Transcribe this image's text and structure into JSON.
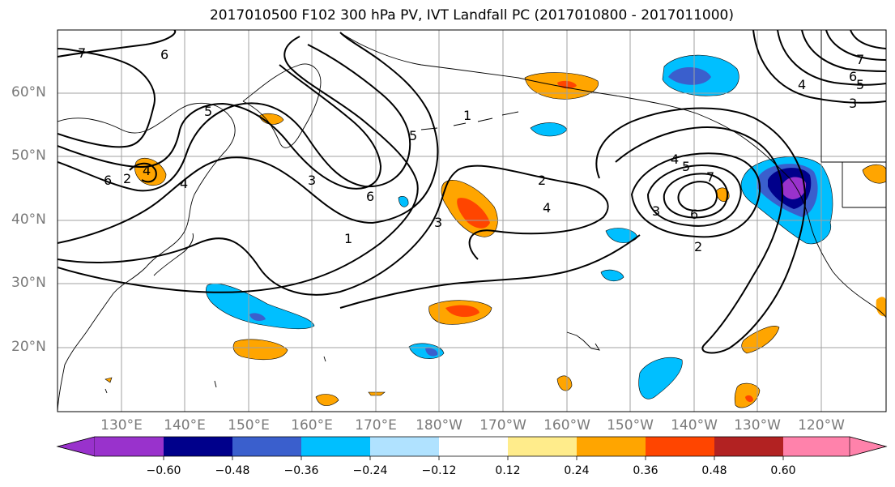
{
  "title": "2017010500 F102 300 hPa PV, IVT Landfall PC (2017010800 - 2017011000)",
  "lat_labels": [
    "60°N",
    "50°N",
    "40°N",
    "30°N",
    "20°N"
  ],
  "lon_labels": [
    "130°E",
    "140°E",
    "150°E",
    "160°E",
    "170°E",
    "180°W",
    "170°W",
    "160°W",
    "150°W",
    "140°W",
    "130°W",
    "120°W"
  ],
  "contour_labels": [
    "7",
    "6",
    "5",
    "4",
    "3",
    "2",
    "1",
    "1",
    "5",
    "6",
    "3",
    "2",
    "4",
    "4",
    "3",
    "5",
    "7",
    "6",
    "2",
    "7",
    "6",
    "5",
    "4",
    "3",
    "4",
    "6"
  ],
  "colorbar": {
    "colors": [
      "#9932cc",
      "#00008b",
      "#3a5fcd",
      "#00bfff",
      "#b0e2ff",
      "#ffffff",
      "#ffec8b",
      "#ffa500",
      "#ff4500",
      "#b22222",
      "#ff82ab"
    ],
    "tick_labels": [
      "−0.60",
      "−0.48",
      "−0.36",
      "−0.24",
      "−0.12",
      "0.12",
      "0.24",
      "0.36",
      "0.48",
      "0.60"
    ]
  }
}
